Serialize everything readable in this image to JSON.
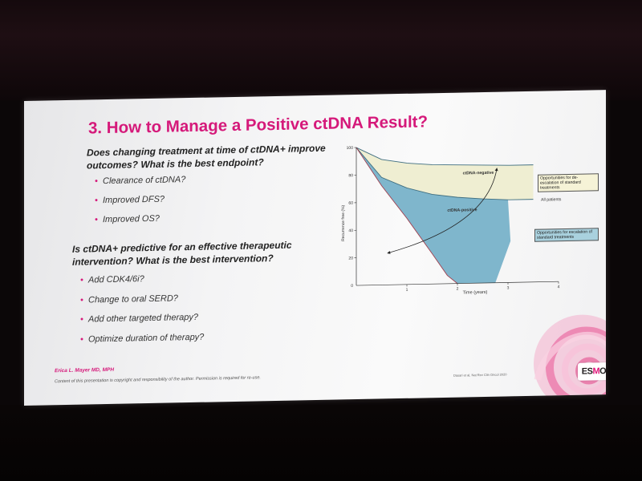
{
  "slide": {
    "title": "3. How to Manage a Positive ctDNA Result?",
    "question_1": "Does changing treatment at time of ctDNA+ improve outcomes? What is the best endpoint?",
    "bullets_1": [
      "Clearance of ctDNA?",
      "Improved DFS?",
      "Improved OS?"
    ],
    "question_2": "Is ctDNA+ predictive for an effective therapeutic intervention? What is the best intervention?",
    "bullets_2": [
      "Add CDK4/6i?",
      "Change to oral SERD?",
      "Add other targeted therapy?",
      "Optimize duration of therapy?"
    ],
    "author": "Erica L. Mayer MD, MPH",
    "copyright": "Content of this presentation is copyright and responsibility of the author. Permission is required for re-use.",
    "citation": "Dasari et al, Nat Rev Clin Oncol 2020",
    "logo": {
      "prefix": "ES",
      "accent": "M",
      "suffix": "O"
    }
  },
  "chart_data": {
    "type": "area",
    "xlabel": "Time (years)",
    "ylabel": "Recurrence free (%)",
    "xlim": [
      0,
      4
    ],
    "ylim": [
      0,
      100
    ],
    "x_ticks": [
      "1",
      "2",
      "3",
      "4"
    ],
    "y_ticks": [
      "20",
      "40",
      "60",
      "80",
      "100"
    ],
    "series": [
      {
        "name": "ctDNA-negative",
        "x": [
          0,
          0.5,
          1,
          1.5,
          2,
          2.5,
          3,
          3.5
        ],
        "y": [
          100,
          91,
          88,
          86.5,
          86,
          85.5,
          85,
          85
        ]
      },
      {
        "name": "All patients",
        "x": [
          0,
          0.5,
          1,
          1.5,
          2,
          2.5,
          3,
          3.5
        ],
        "y": [
          100,
          78,
          70,
          65,
          62.5,
          61,
          60,
          60
        ]
      },
      {
        "name": "ctDNA-positive",
        "x": [
          0,
          0.5,
          1,
          1.5,
          1.8,
          2
        ],
        "y": [
          100,
          72,
          48,
          22,
          6,
          0
        ]
      }
    ],
    "annotations": [
      "Opportunities for de-escalation of standard treatments",
      "Opportunities for escalation of standard treatments"
    ],
    "colors": {
      "negative_fill": "#efeed2",
      "positive_fill": "#7fb6cc",
      "curve": "#3f6e80",
      "arrow": "#222222"
    }
  }
}
